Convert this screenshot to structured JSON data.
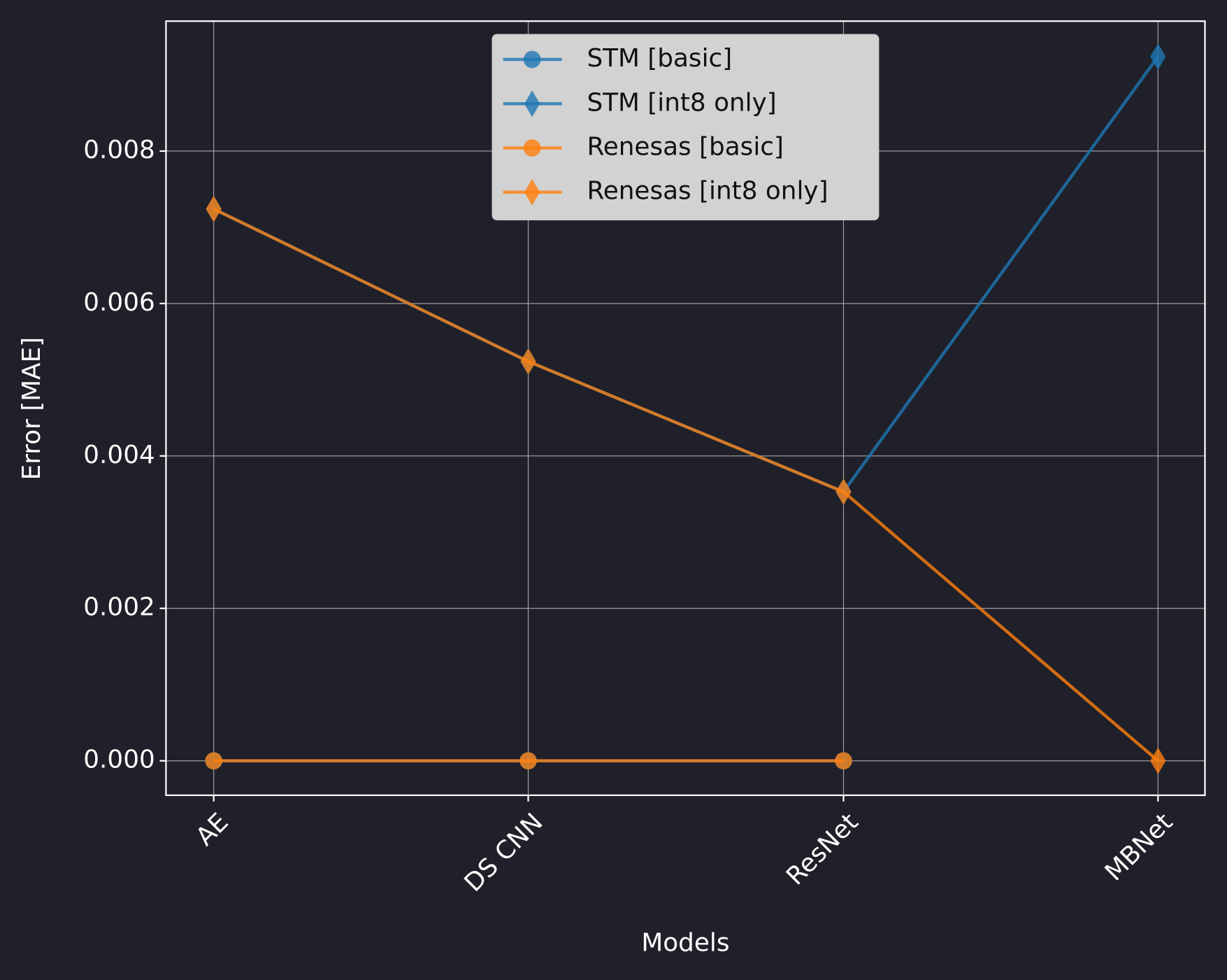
{
  "chart_data": {
    "type": "line",
    "x_label": "Models",
    "y_label": "Error [MAE]",
    "categories": [
      "AE",
      "DS CNN",
      "ResNet",
      "MBNet"
    ],
    "series": [
      {
        "name": "STM [basic]",
        "color": "#1f77b4",
        "marker": "circle",
        "values": [
          0,
          0,
          0,
          null
        ]
      },
      {
        "name": "STM [int8 only]",
        "color": "#1f77b4",
        "marker": "diamond",
        "values": [
          0.00724,
          0.00524,
          0.00353,
          0.00924
        ]
      },
      {
        "name": "Renesas [basic]",
        "color": "#ff7f0e",
        "marker": "circle",
        "values": [
          0,
          0,
          0,
          null
        ]
      },
      {
        "name": "Renesas [int8 only]",
        "color": "#ff7f0e",
        "marker": "diamond",
        "values": [
          0.00724,
          0.00524,
          0.00353,
          0
        ]
      }
    ],
    "ylim": [
      -0.000452,
      0.009705
    ],
    "yticks": [
      {
        "value": 0,
        "label": "0.000"
      },
      {
        "value": 0.002,
        "label": "0.002"
      },
      {
        "value": 0.004,
        "label": "0.004"
      },
      {
        "value": 0.006,
        "label": "0.006"
      },
      {
        "value": 0.008,
        "label": "0.008"
      }
    ],
    "grid": true,
    "legend": "upper center"
  }
}
